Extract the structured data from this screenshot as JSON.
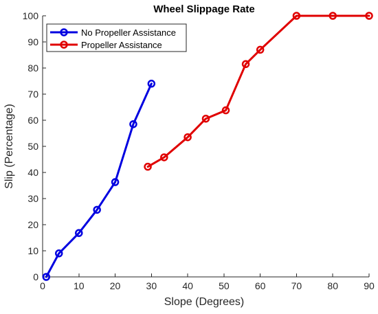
{
  "chart_data": {
    "type": "line",
    "title": "Wheel Slippage Rate",
    "xlabel": "Slope (Degrees)",
    "ylabel": "Slip (Percentage)",
    "xlim": [
      0,
      90
    ],
    "ylim": [
      0,
      100
    ],
    "xticks": [
      0,
      10,
      20,
      30,
      40,
      50,
      60,
      70,
      80,
      90
    ],
    "yticks": [
      0,
      10,
      20,
      30,
      40,
      50,
      60,
      70,
      80,
      90,
      100
    ],
    "grid": false,
    "legend_position": "top-left",
    "series": [
      {
        "name": "No Propeller Assistance",
        "color": "#0000e0",
        "marker": "circle",
        "x": [
          1,
          4.5,
          10,
          15,
          20,
          25,
          30
        ],
        "y": [
          0,
          9,
          16.8,
          25.7,
          36.3,
          58.5,
          74
        ]
      },
      {
        "name": "Propeller Assistance",
        "color": "#e00000",
        "marker": "circle",
        "x": [
          29,
          33.5,
          40,
          45,
          50.5,
          56,
          60,
          70,
          80,
          90
        ],
        "y": [
          42.2,
          45.8,
          53.5,
          60.6,
          63.8,
          81.5,
          87,
          100,
          100,
          100
        ]
      }
    ]
  }
}
